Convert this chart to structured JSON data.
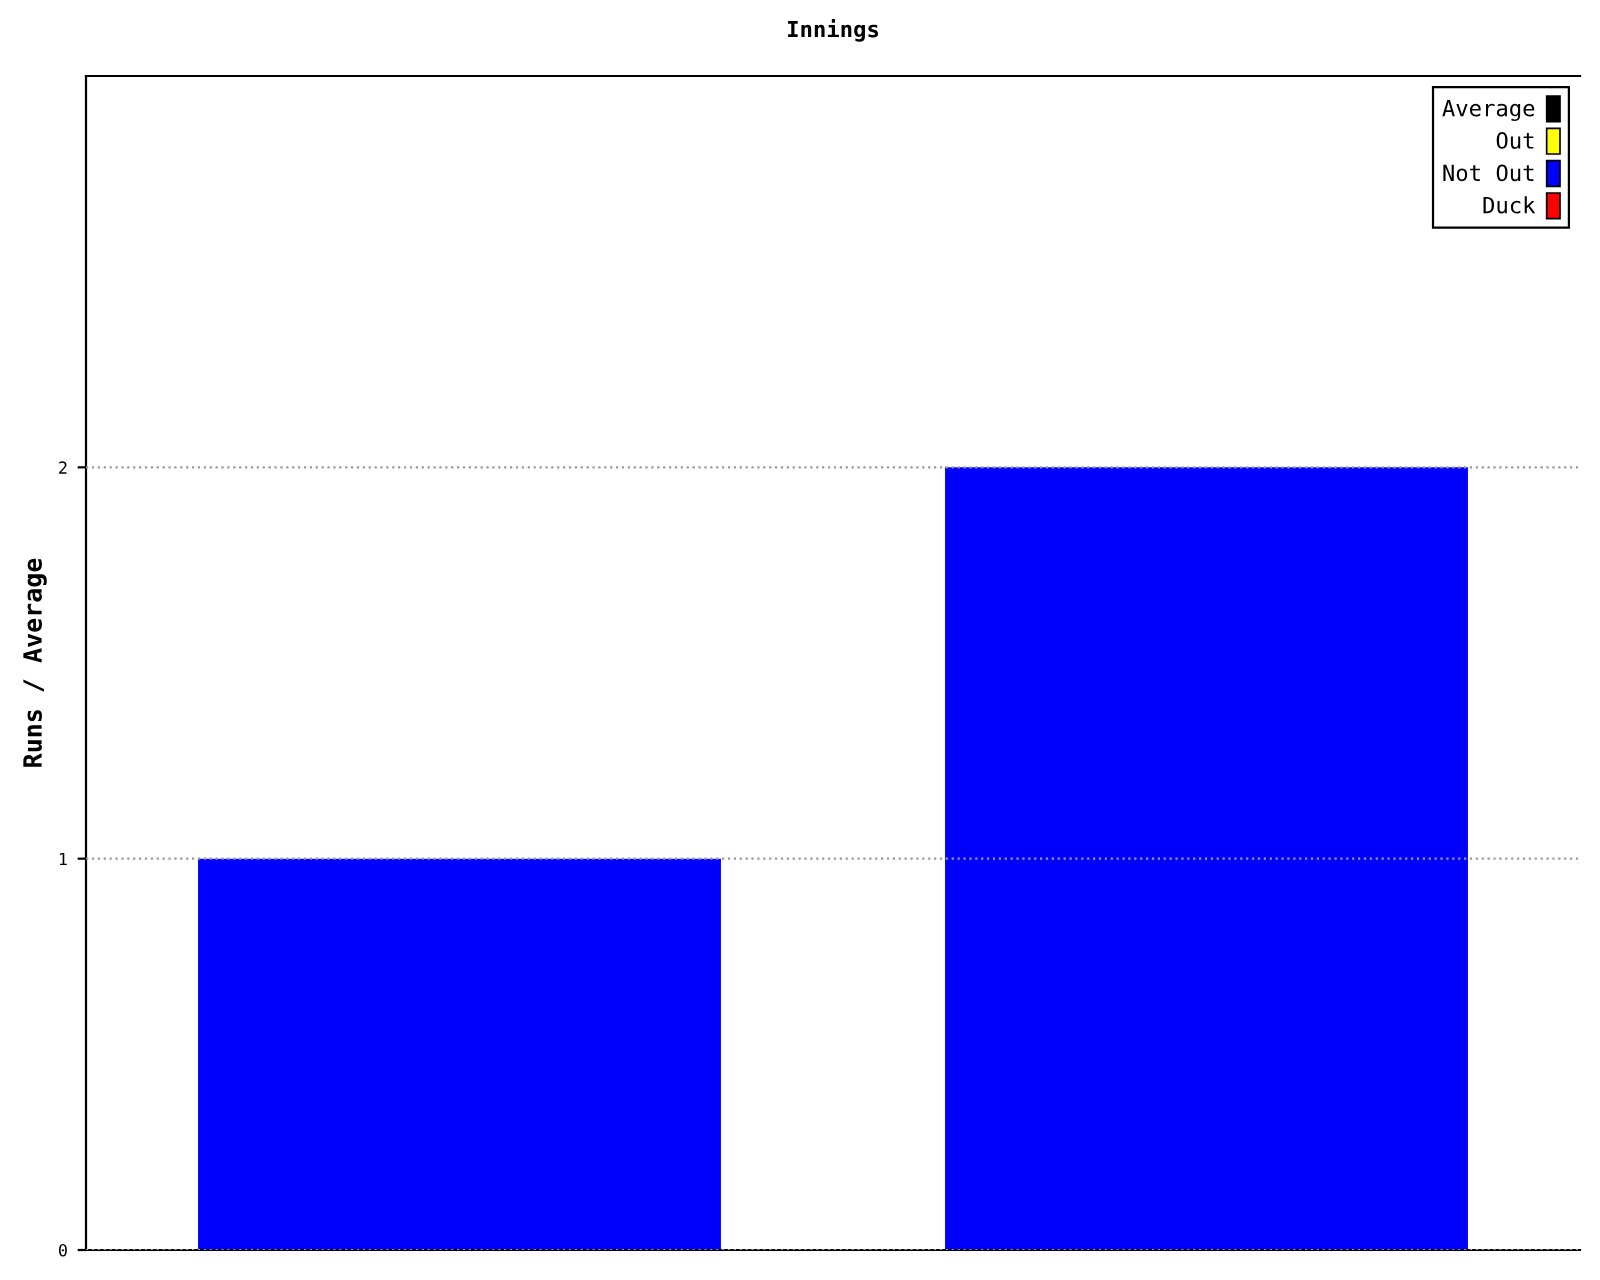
{
  "chart_data": {
    "type": "bar",
    "title": "Innings",
    "ylabel": "Runs / Average",
    "categories": [
      null,
      null
    ],
    "series": [
      {
        "name": "Average",
        "color": "#000000",
        "values": [
          null,
          null
        ]
      },
      {
        "name": "Out",
        "color": "#ffff00",
        "values": [
          null,
          null
        ]
      },
      {
        "name": "Not Out",
        "color": "#0000ff",
        "values": [
          1,
          2
        ]
      },
      {
        "name": "Duck",
        "color": "#ff0000",
        "values": [
          null,
          null
        ]
      }
    ],
    "ylim": [
      0,
      3
    ],
    "yticks": [
      0,
      1,
      2
    ],
    "grid": "y",
    "legend": "top right"
  }
}
